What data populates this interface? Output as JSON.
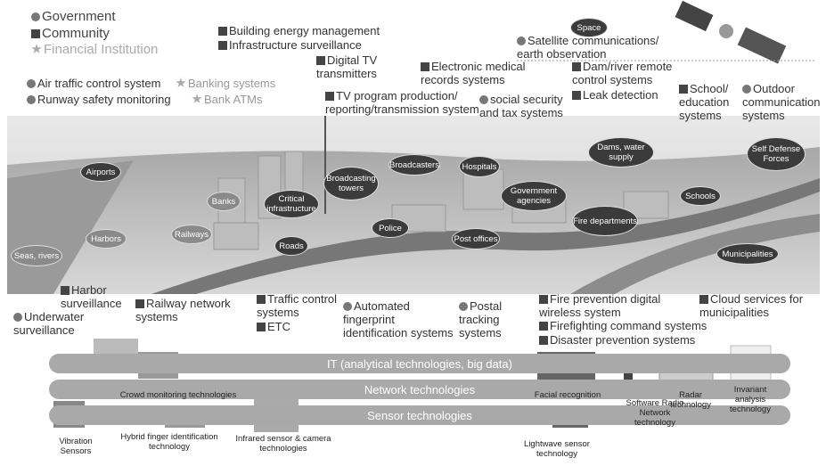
{
  "legend": [
    {
      "label": "Government",
      "systems": [
        "Air traffic control system",
        "Runway safety monitoring",
        "social security and tax systems",
        "Satellite communications/ earth observation",
        "Outdoor communication systems",
        "Underwater surveillance",
        "Automated fingerprint identification systems",
        "Postal tracking systems"
      ]
    },
    {
      "label": "Community",
      "systems": [
        "Building energy management",
        "Infrastructure surveillance",
        "Digital TV transmitters",
        "TV program production/ reporting/transmission system",
        "Electronic medical records systems",
        "Dam/river remote control systems",
        "Leak detection",
        "School/ education systems",
        "Harbor surveillance",
        "Railway network systems",
        "Traffic control systems",
        "ETC",
        "Fire prevention digital wireless system",
        "Firefighting command systems",
        "Disaster prevention systems",
        "Cloud services for municipalities"
      ]
    },
    {
      "label": "Financial Institution",
      "systems": [
        "Banking systems",
        "Bank ATMs"
      ]
    }
  ],
  "facilities": [
    "Space",
    "Airports",
    "Harbors",
    "Seas, rivers",
    "Railways",
    "Banks",
    "Critical infrastructure",
    "Broadcasting towers",
    "Roads",
    "Broadcasters",
    "Hospitals",
    "Police",
    "Post offices",
    "Government agencies",
    "Fire departments",
    "Dams, water supply",
    "Schools",
    "Self Defense Forces",
    "Municipalities"
  ],
  "technology_layers": [
    "IT (analytical technologies, big data)",
    "Network technologies",
    "Sensor technologies"
  ],
  "technologies": [
    "Crowd monitoring technologies",
    "Facial recognition",
    "Software Radio Network technology",
    "Radar technology",
    "Invariant analysis technology",
    "Vibration Sensors",
    "Hybrid finger identification technology",
    "Infrared sensor & camera technologies",
    "Lightwave sensor technology"
  ]
}
